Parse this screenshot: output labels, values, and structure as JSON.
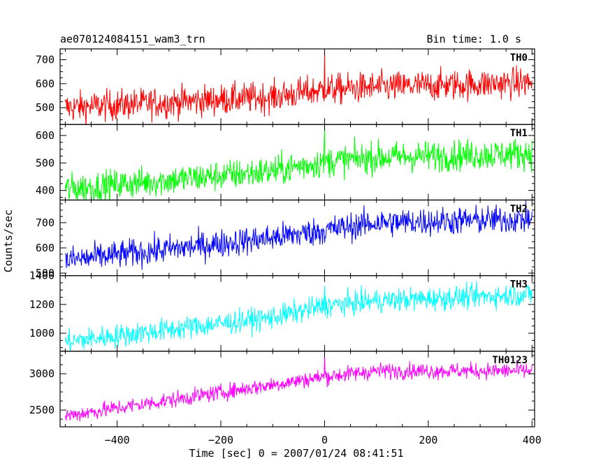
{
  "chart_data": {
    "type": "line",
    "title": "ae070124084151_wam3_trn",
    "subtitle": "Bin time: 1.0 s",
    "xlabel": "Time [sec] 0 = 2007/01/24 08:41:51",
    "ylabel": "Counts/sec",
    "xlim": [
      -510,
      405
    ],
    "x_ticks": [
      -400,
      -200,
      0,
      200,
      400
    ],
    "x_tick_labels": [
      "−400",
      "−200",
      "0",
      "200",
      "400"
    ],
    "x_range": [
      -500,
      400
    ],
    "grid": false,
    "panels": [
      {
        "name": "TH0",
        "color": "#ff0000",
        "ylim": [
          430,
          745
        ],
        "y_ticks": [
          500,
          600,
          700
        ],
        "y_tick_labels": [
          "500",
          "600",
          "700"
        ],
        "trend": [
          [
            -500,
            500
          ],
          [
            -100,
            545
          ],
          [
            0,
            575
          ],
          [
            100,
            585
          ],
          [
            400,
            605
          ]
        ],
        "noise": 32,
        "spike": {
          "x": 0,
          "value": 745
        }
      },
      {
        "name": "TH1",
        "color": "#00ff00",
        "ylim": [
          365,
          640
        ],
        "y_ticks": [
          400,
          500,
          600
        ],
        "y_tick_labels": [
          "400",
          "500",
          "600"
        ],
        "trend": [
          [
            -500,
            405
          ],
          [
            -100,
            470
          ],
          [
            0,
            505
          ],
          [
            100,
            520
          ],
          [
            400,
            535
          ]
        ],
        "noise": 28,
        "spike": {
          "x": 0,
          "value": 625
        }
      },
      {
        "name": "TH2",
        "color": "#0000ff",
        "ylim": [
          490,
          790
        ],
        "y_ticks": [
          500,
          600,
          700
        ],
        "y_tick_labels": [
          "500",
          "600",
          "700"
        ],
        "trend": [
          [
            -500,
            550
          ],
          [
            -100,
            640
          ],
          [
            0,
            670
          ],
          [
            100,
            700
          ],
          [
            400,
            715
          ]
        ],
        "noise": 28,
        "spike": null
      },
      {
        "name": "TH3",
        "color": "#00ffff",
        "ylim": [
          875,
          1400
        ],
        "y_ticks": [
          1000,
          1200,
          1400
        ],
        "y_tick_labels": [
          "1000",
          "1200",
          "1400"
        ],
        "trend": [
          [
            -500,
            940
          ],
          [
            -100,
            1110
          ],
          [
            0,
            1190
          ],
          [
            100,
            1225
          ],
          [
            400,
            1270
          ]
        ],
        "noise": 40,
        "spike": {
          "x": 0,
          "value": 1330
        }
      },
      {
        "name": "TH0123",
        "color": "#ff00ff",
        "ylim": [
          2270,
          3310
        ],
        "y_ticks": [
          2500,
          3000
        ],
        "y_tick_labels": [
          "2500",
          "3000"
        ],
        "trend": [
          [
            -500,
            2420
          ],
          [
            -100,
            2850
          ],
          [
            0,
            2960
          ],
          [
            100,
            3040
          ],
          [
            400,
            3040
          ]
        ],
        "noise": 55,
        "spike": {
          "x": 0,
          "value": 3280
        }
      }
    ]
  }
}
